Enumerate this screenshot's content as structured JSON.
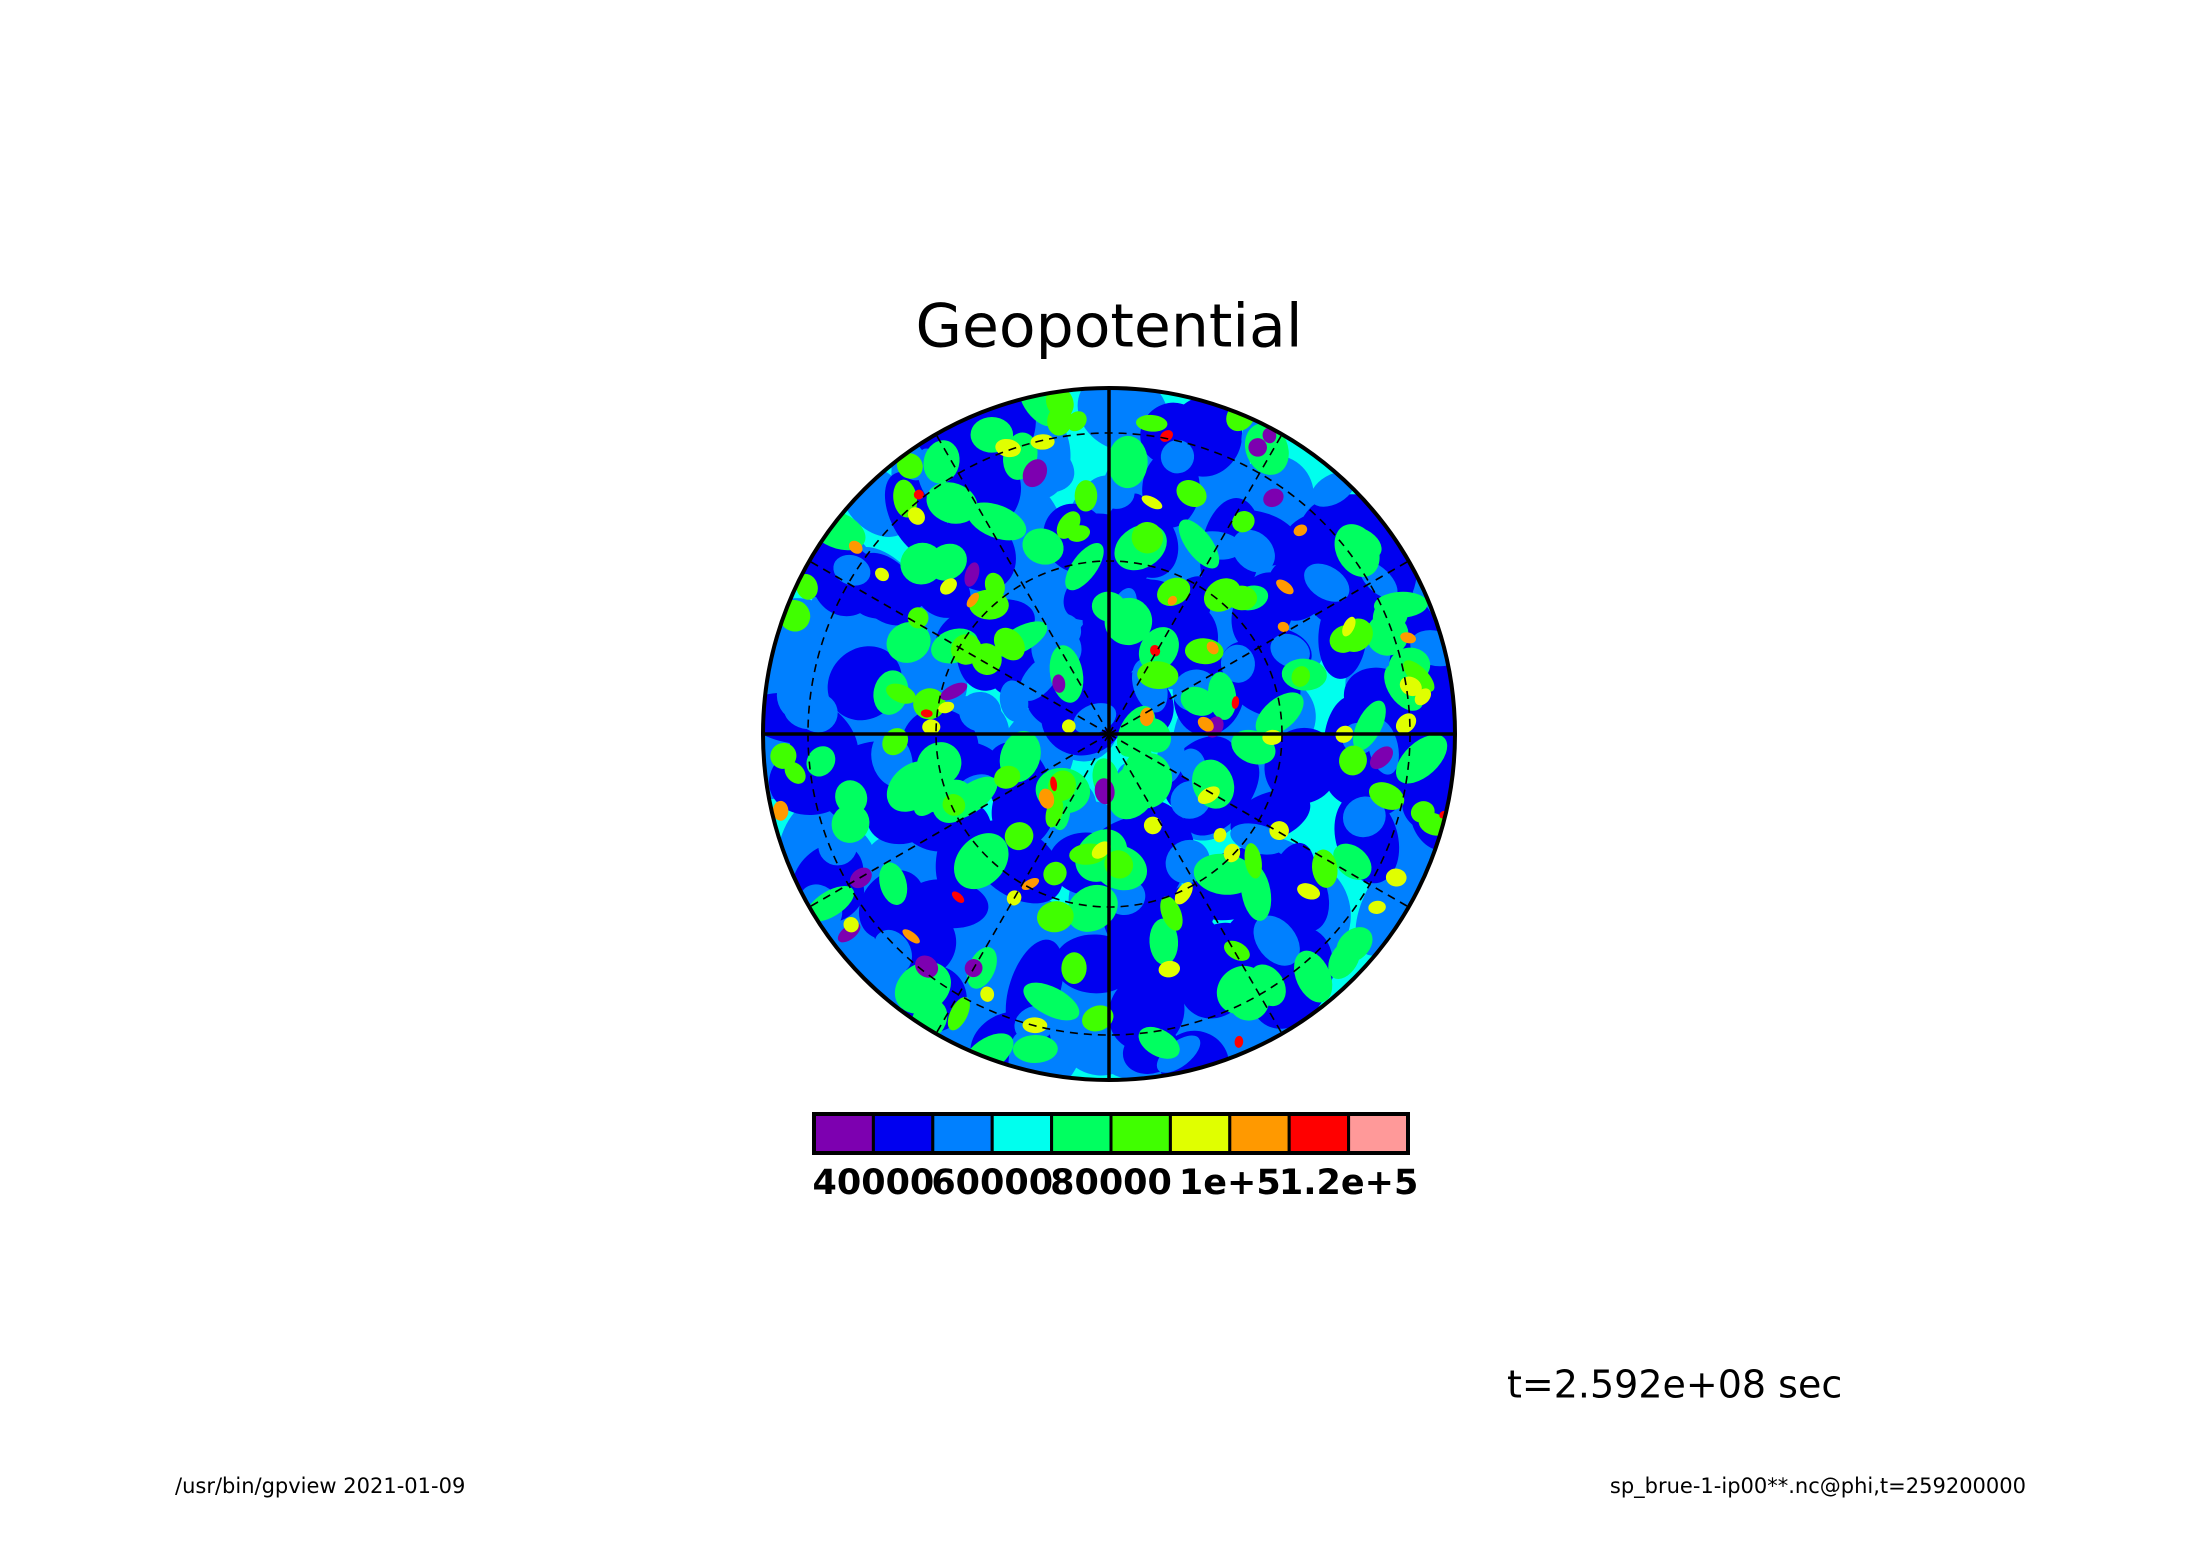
{
  "chart_data": {
    "type": "polar-contour",
    "title": "Geopotential",
    "colorbar": {
      "colors": [
        "#7d00b0",
        "#0000f0",
        "#0080ff",
        "#00ffee",
        "#00ff60",
        "#40ff00",
        "#e0ff00",
        "#ff9900",
        "#ff0000",
        "#ff9999"
      ],
      "levels": [
        30000,
        40000,
        50000,
        60000,
        70000,
        80000,
        90000,
        100000,
        110000,
        120000,
        130000
      ],
      "ticks": [
        40000,
        60000,
        80000,
        {
          "value": 100000,
          "label": "1e+5"
        },
        {
          "value": 120000,
          "label": "1.2e+5"
        }
      ]
    },
    "time_label": "t=2.592e+08 sec",
    "footer_left": "/usr/bin/gpview  2021-01-09",
    "footer_right": "sp_brue-1-ip00**.nc@phi,t=259200000"
  }
}
